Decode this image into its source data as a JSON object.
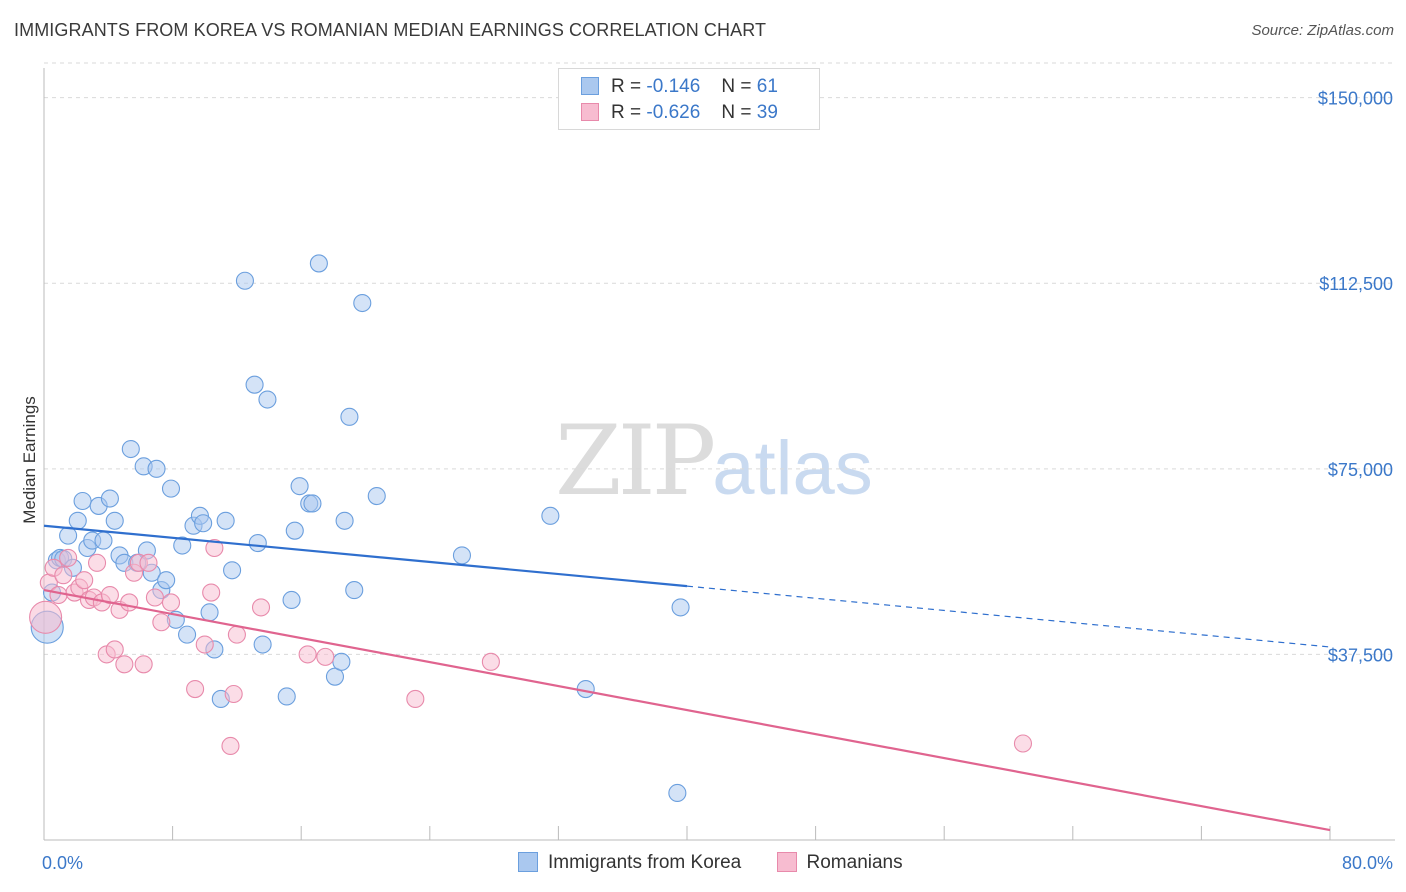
{
  "title": "IMMIGRANTS FROM KOREA VS ROMANIAN MEDIAN EARNINGS CORRELATION CHART",
  "source": "Source: ZipAtlas.com",
  "watermark": {
    "zip": "ZIP",
    "atlas": "atlas"
  },
  "legend": {
    "rows": [
      {
        "r_label": "R =",
        "r_value": "-0.146",
        "n_label": "N =",
        "n_value": "61"
      },
      {
        "r_label": "R =",
        "r_value": "-0.626",
        "n_label": "N =",
        "n_value": "39"
      }
    ]
  },
  "colors": {
    "korea_fill": "#aac8ef",
    "korea_stroke": "#6b9fde",
    "korea_line": "#2f6fce",
    "romanian_fill": "#f7bcd0",
    "romanian_stroke": "#e88aab",
    "romanian_line": "#e0648f",
    "grid": "#d9d9d9",
    "axis": "#bbbbbb",
    "tick_label": "#3b78c9"
  },
  "chart_data": {
    "type": "scatter",
    "title": "IMMIGRANTS FROM KOREA VS ROMANIAN MEDIAN EARNINGS CORRELATION CHART",
    "xlabel": "",
    "ylabel": "Median Earnings",
    "xlim": [
      0,
      80
    ],
    "ylim": [
      0,
      157000
    ],
    "x_tick_labels": [
      "0.0%",
      "80.0%"
    ],
    "y_ticks": [
      37500,
      75000,
      112500,
      150000
    ],
    "y_tick_labels": [
      "$37,500",
      "$75,000",
      "$112,500",
      "$150,000"
    ],
    "grid": "horizontal dashed",
    "legend_position": "top-center",
    "series": [
      {
        "name": "Immigrants from Korea",
        "points": [
          [
            0.5,
            50000
          ],
          [
            0.8,
            56500
          ],
          [
            1.0,
            57000
          ],
          [
            1.2,
            56800
          ],
          [
            1.5,
            61500
          ],
          [
            1.8,
            55000
          ],
          [
            2.1,
            64500
          ],
          [
            2.4,
            68500
          ],
          [
            2.7,
            59000
          ],
          [
            3.0,
            60500
          ],
          [
            3.4,
            67500
          ],
          [
            3.7,
            60500
          ],
          [
            4.1,
            69000
          ],
          [
            4.4,
            64500
          ],
          [
            4.7,
            57500
          ],
          [
            5.0,
            56000
          ],
          [
            5.4,
            79000
          ],
          [
            5.8,
            56000
          ],
          [
            6.2,
            75500
          ],
          [
            6.4,
            58500
          ],
          [
            6.7,
            54000
          ],
          [
            7.0,
            75000
          ],
          [
            7.3,
            50500
          ],
          [
            7.6,
            52500
          ],
          [
            7.9,
            71000
          ],
          [
            8.2,
            44500
          ],
          [
            8.6,
            59500
          ],
          [
            8.9,
            41500
          ],
          [
            9.3,
            63500
          ],
          [
            9.7,
            65500
          ],
          [
            9.9,
            64000
          ],
          [
            10.3,
            46000
          ],
          [
            10.6,
            38500
          ],
          [
            11.0,
            28500
          ],
          [
            11.3,
            64500
          ],
          [
            11.7,
            54500
          ],
          [
            12.5,
            113000
          ],
          [
            13.1,
            92000
          ],
          [
            13.3,
            60000
          ],
          [
            13.6,
            39500
          ],
          [
            13.9,
            89000
          ],
          [
            15.1,
            29000
          ],
          [
            15.4,
            48500
          ],
          [
            15.6,
            62500
          ],
          [
            15.9,
            71500
          ],
          [
            16.5,
            68000
          ],
          [
            16.7,
            68000
          ],
          [
            17.1,
            116500
          ],
          [
            18.1,
            33000
          ],
          [
            18.5,
            36000
          ],
          [
            18.7,
            64500
          ],
          [
            19.0,
            85500
          ],
          [
            19.3,
            50500
          ],
          [
            19.8,
            108500
          ],
          [
            20.7,
            69500
          ],
          [
            26.0,
            57500
          ],
          [
            31.5,
            65500
          ],
          [
            33.7,
            30500
          ],
          [
            39.4,
            9500
          ],
          [
            39.6,
            47000
          ],
          [
            0.2,
            43000
          ]
        ]
      },
      {
        "name": "Romanians",
        "points": [
          [
            0.3,
            52000
          ],
          [
            0.6,
            55000
          ],
          [
            0.9,
            49500
          ],
          [
            1.2,
            53500
          ],
          [
            1.5,
            57000
          ],
          [
            1.9,
            50000
          ],
          [
            2.2,
            51000
          ],
          [
            2.5,
            52500
          ],
          [
            2.8,
            48500
          ],
          [
            3.1,
            49000
          ],
          [
            3.3,
            56000
          ],
          [
            3.6,
            48000
          ],
          [
            3.9,
            37500
          ],
          [
            4.1,
            49500
          ],
          [
            4.4,
            38500
          ],
          [
            4.7,
            46500
          ],
          [
            5.0,
            35500
          ],
          [
            5.3,
            48000
          ],
          [
            5.6,
            54000
          ],
          [
            5.9,
            56000
          ],
          [
            6.2,
            35500
          ],
          [
            6.5,
            56000
          ],
          [
            6.9,
            49000
          ],
          [
            7.3,
            44000
          ],
          [
            7.9,
            48000
          ],
          [
            9.4,
            30500
          ],
          [
            10.0,
            39500
          ],
          [
            10.4,
            50000
          ],
          [
            10.6,
            59000
          ],
          [
            11.6,
            19000
          ],
          [
            11.8,
            29500
          ],
          [
            12.0,
            41500
          ],
          [
            13.5,
            47000
          ],
          [
            16.4,
            37500
          ],
          [
            17.5,
            37000
          ],
          [
            23.1,
            28500
          ],
          [
            27.8,
            36000
          ],
          [
            60.9,
            19500
          ],
          [
            0.1,
            45000
          ]
        ]
      }
    ],
    "trend_lines": [
      {
        "series": "Immigrants from Korea",
        "solid": [
          [
            0,
            63500
          ],
          [
            40,
            51300
          ]
        ],
        "dashed": [
          [
            40,
            51300
          ],
          [
            80,
            39000
          ]
        ]
      },
      {
        "series": "Romanians",
        "solid": [
          [
            0,
            50500
          ],
          [
            80,
            2000
          ]
        ]
      }
    ]
  }
}
